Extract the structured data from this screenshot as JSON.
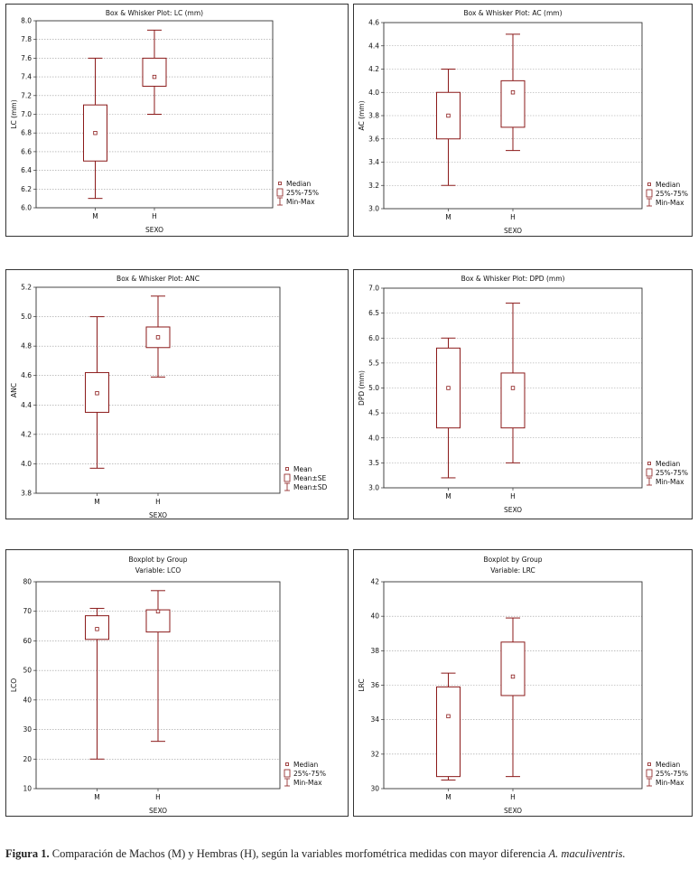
{
  "chart_data": [
    {
      "type": "box",
      "title": "Box & Whisker Plot: LC (mm)",
      "subtitle": "",
      "ylabel": "LC (mm)",
      "xlabel": "SEXO",
      "ylim": [
        6.0,
        8.0
      ],
      "yticks": [
        "6.0",
        "6.2",
        "6.4",
        "6.6",
        "6.8",
        "7.0",
        "7.2",
        "7.4",
        "7.6",
        "7.8",
        "8.0"
      ],
      "categories": [
        "M",
        "H"
      ],
      "boxes": [
        {
          "min": 6.1,
          "q1": 6.5,
          "center": 6.8,
          "q3": 7.1,
          "max": 7.6
        },
        {
          "min": 7.0,
          "q1": 7.3,
          "center": 7.4,
          "q3": 7.6,
          "max": 7.9
        }
      ],
      "legend": [
        "Median",
        "25%-75%",
        "Min-Max"
      ]
    },
    {
      "type": "box",
      "title": "Box & Whisker Plot: AC (mm)",
      "subtitle": "",
      "ylabel": "AC (mm)",
      "xlabel": "SEXO",
      "ylim": [
        3.0,
        4.6
      ],
      "yticks": [
        "3.0",
        "3.2",
        "3.4",
        "3.6",
        "3.8",
        "4.0",
        "4.2",
        "4.4",
        "4.6"
      ],
      "categories": [
        "M",
        "H"
      ],
      "boxes": [
        {
          "min": 3.2,
          "q1": 3.6,
          "center": 3.8,
          "q3": 4.0,
          "max": 4.2
        },
        {
          "min": 3.5,
          "q1": 3.7,
          "center": 4.0,
          "q3": 4.1,
          "max": 4.5
        }
      ],
      "legend": [
        "Median",
        "25%-75%",
        "Min-Max"
      ]
    },
    {
      "type": "box",
      "title": "Box & Whisker Plot:      ANC",
      "subtitle": "",
      "ylabel": "ANC",
      "xlabel": "SEXO",
      "ylim": [
        3.8,
        5.2
      ],
      "yticks": [
        "3.8",
        "4.0",
        "4.2",
        "4.4",
        "4.6",
        "4.8",
        "5.0",
        "5.2"
      ],
      "categories": [
        "M",
        "H"
      ],
      "boxes": [
        {
          "min": 3.97,
          "q1": 4.35,
          "center": 4.48,
          "q3": 4.62,
          "max": 5.0
        },
        {
          "min": 4.59,
          "q1": 4.79,
          "center": 4.86,
          "q3": 4.93,
          "max": 5.14
        }
      ],
      "legend": [
        "Mean",
        "Mean±SE",
        "Mean±SD"
      ]
    },
    {
      "type": "box",
      "title": "Box & Whisker Plot: DPD (mm)",
      "subtitle": "",
      "ylabel": "DPD (mm)",
      "xlabel": "SEXO",
      "ylim": [
        3.0,
        7.0
      ],
      "yticks": [
        "3.0",
        "3.5",
        "4.0",
        "4.5",
        "5.0",
        "5.5",
        "6.0",
        "6.5",
        "7.0"
      ],
      "categories": [
        "M",
        "H"
      ],
      "boxes": [
        {
          "min": 3.2,
          "q1": 4.2,
          "center": 5.0,
          "q3": 5.8,
          "max": 6.0
        },
        {
          "min": 3.5,
          "q1": 4.2,
          "center": 5.0,
          "q3": 5.3,
          "max": 6.7
        }
      ],
      "legend": [
        "Median",
        "25%-75%",
        "Min-Max"
      ]
    },
    {
      "type": "box",
      "title": "Boxplot by Group",
      "subtitle": "Variable: LCO",
      "ylabel": "LCO",
      "xlabel": "SEXO",
      "ylim": [
        10,
        80
      ],
      "yticks": [
        "10",
        "20",
        "30",
        "40",
        "50",
        "60",
        "70",
        "80"
      ],
      "categories": [
        "M",
        "H"
      ],
      "boxes": [
        {
          "min": 20,
          "q1": 60.5,
          "center": 64,
          "q3": 68.5,
          "max": 71
        },
        {
          "min": 26,
          "q1": 63,
          "center": 70,
          "q3": 70.5,
          "max": 77
        }
      ],
      "legend": [
        "Median",
        "25%-75%",
        "Min-Max"
      ]
    },
    {
      "type": "box",
      "title": "Boxplot by Group",
      "subtitle": "Variable: LRC",
      "ylabel": "LRC",
      "xlabel": "SEXO",
      "ylim": [
        30,
        42
      ],
      "yticks": [
        "30",
        "32",
        "34",
        "36",
        "38",
        "40",
        "42"
      ],
      "categories": [
        "M",
        "H"
      ],
      "boxes": [
        {
          "min": 30.5,
          "q1": 30.7,
          "center": 34.2,
          "q3": 35.9,
          "max": 36.7
        },
        {
          "min": 30.7,
          "q1": 35.4,
          "center": 36.5,
          "q3": 38.5,
          "max": 39.9
        }
      ],
      "legend": [
        "Median",
        "25%-75%",
        "Min-Max"
      ]
    }
  ],
  "caption": {
    "label": "Figura 1.",
    "text": " Comparación de Machos (M) y Hembras (H), según la variables morfométrica medidas con mayor diferencia ",
    "species": "A. maculiventris."
  }
}
